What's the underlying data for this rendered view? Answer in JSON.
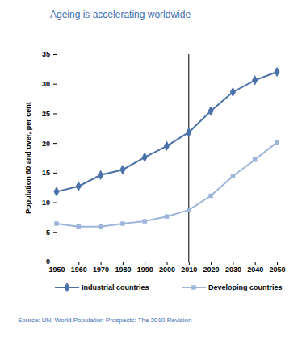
{
  "chart_data": {
    "type": "line",
    "title": "Ageing is accelerating worldwide",
    "y_label": "Population 60 and over, per cent",
    "source": "Source: UN, World Population Prospects: The 2010 Revision",
    "x": [
      1950,
      1960,
      1970,
      1980,
      1990,
      2000,
      2010,
      2020,
      2030,
      2040,
      2050
    ],
    "series": [
      {
        "name": "Industrial countries",
        "color": "#4a72a8",
        "marker": "diamond",
        "line_style": "solid",
        "values": [
          11.8,
          12.7,
          14.6,
          15.5,
          17.6,
          19.5,
          21.8,
          25.4,
          28.6,
          30.6,
          32.0
        ]
      },
      {
        "name": "Developing countries",
        "color": "#9db5d9",
        "marker": "square",
        "line_style": "solid",
        "values": [
          6.4,
          5.9,
          5.9,
          6.4,
          6.8,
          7.6,
          8.7,
          11.1,
          14.4,
          17.2,
          20.1
        ]
      }
    ],
    "vlines": [
      2010
    ],
    "xlim": [
      1950,
      2050
    ],
    "xticks": [
      1950,
      1960,
      1970,
      1980,
      1990,
      2000,
      2010,
      2020,
      2030,
      2040,
      2050
    ],
    "ylim": [
      0,
      35
    ],
    "yticks": [
      0,
      5,
      10,
      15,
      20,
      25,
      30,
      35
    ],
    "grid": false,
    "legend": "bottom"
  }
}
